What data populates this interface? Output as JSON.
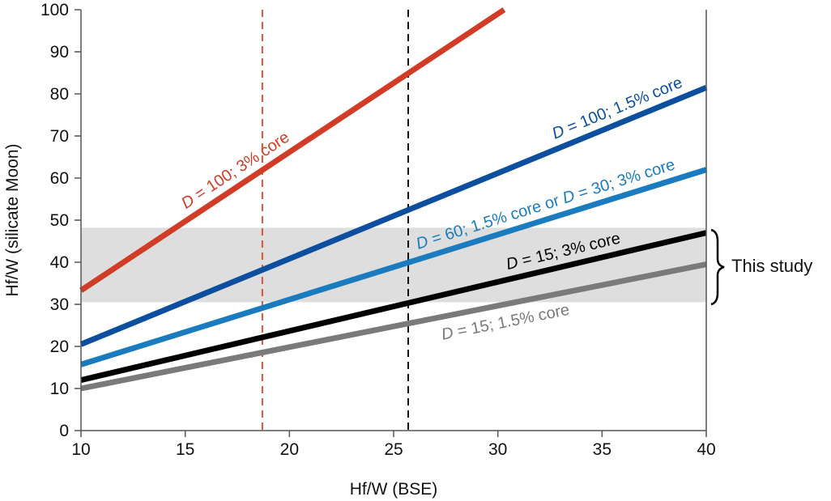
{
  "chart_data": {
    "type": "line",
    "xlabel": "Hf/W (BSE)",
    "ylabel": "Hf/W (silicate Moon)",
    "xlim": [
      10,
      40
    ],
    "ylim": [
      0,
      100
    ],
    "xticks": [
      "10",
      "15",
      "20",
      "25",
      "30",
      "35",
      "40"
    ],
    "yticks": [
      "0",
      "10",
      "20",
      "30",
      "40",
      "50",
      "60",
      "70",
      "80",
      "90",
      "100"
    ],
    "grid": false,
    "band": {
      "y": [
        30.5,
        48.2
      ],
      "color": "#dedede",
      "label": "This study"
    },
    "vlines": [
      {
        "x": 18.7,
        "color": "#d9533a",
        "style": "dashed"
      },
      {
        "x": 25.7,
        "color": "#111111",
        "style": "dashed"
      }
    ],
    "series": [
      {
        "name": "D = 100; 3% core",
        "color": "#d13c26",
        "x": [
          10,
          30.3
        ],
        "y": [
          33.3,
          100
        ]
      },
      {
        "name": "D = 100; 1.5% core",
        "color": "#0b4f9e",
        "x": [
          10,
          40
        ],
        "y": [
          20.5,
          81.5
        ]
      },
      {
        "name": "D = 60; 1.5% core or D = 30; 3% core",
        "color": "#1a7cbf",
        "x": [
          10,
          40
        ],
        "y": [
          15.7,
          62
        ]
      },
      {
        "name": "D = 15; 3% core",
        "color": "#000000",
        "x": [
          10,
          40
        ],
        "y": [
          12,
          47
        ]
      },
      {
        "name": "D = 15; 1.5% core",
        "color": "#7a7a7a",
        "x": [
          10,
          40
        ],
        "y": [
          10,
          39.5
        ]
      }
    ]
  }
}
